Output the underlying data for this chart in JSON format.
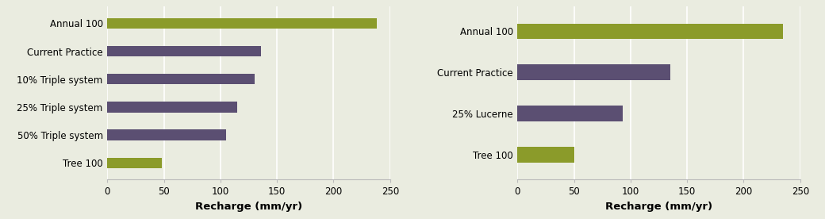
{
  "chart1": {
    "categories": [
      "Tree 100",
      "50% Triple system",
      "25% Triple system",
      "10% Triple system",
      "Current Practice",
      "Annual 100"
    ],
    "values": [
      48,
      105,
      115,
      130,
      136,
      238
    ],
    "colors": [
      "#8B9B2A",
      "#5B4F72",
      "#5B4F72",
      "#5B4F72",
      "#5B4F72",
      "#8B9B2A"
    ],
    "xlabel": "Recharge (mm/yr)",
    "xlim": [
      0,
      250
    ],
    "xticks": [
      0,
      50,
      100,
      150,
      200,
      250
    ]
  },
  "chart2": {
    "categories": [
      "Tree 100",
      "25% Lucerne",
      "Current Practice",
      "Annual 100"
    ],
    "values": [
      50,
      93,
      135,
      235
    ],
    "colors": [
      "#8B9B2A",
      "#5B4F72",
      "#5B4F72",
      "#8B9B2A"
    ],
    "xlabel": "Recharge (mm/yr)",
    "xlim": [
      0,
      250
    ],
    "xticks": [
      0,
      50,
      100,
      150,
      200,
      250
    ]
  },
  "bg_color": "#EAECE0",
  "bar_height": 0.38,
  "tick_fontsize": 8.5,
  "label_fontsize": 8.5,
  "xlabel_fontsize": 9.5,
  "grid_color": "#FFFFFF",
  "spine_color": "#BBBBBB",
  "purple": "#5B4F72",
  "green": "#8B9B2A"
}
